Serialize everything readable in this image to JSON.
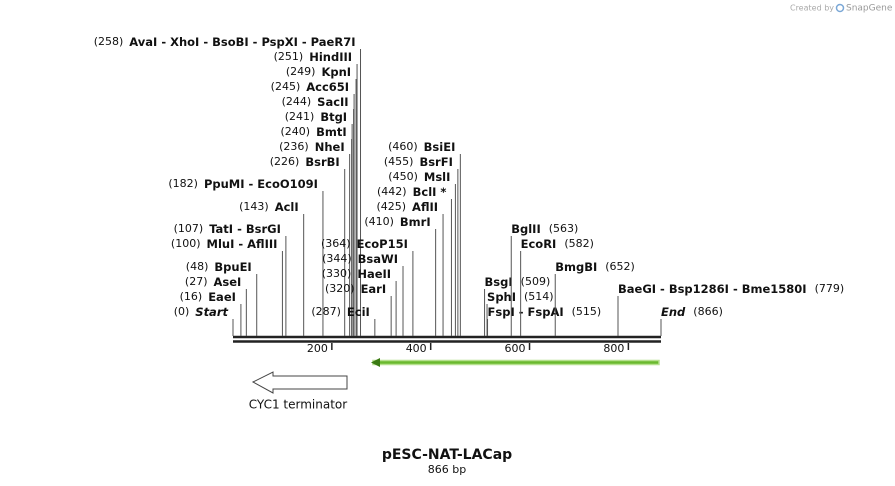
{
  "watermark": {
    "text": "Created by",
    "brand": "SnapGene"
  },
  "map": {
    "sites": [
      {
        "position": {
          "value": 258,
          "label": "(258)"
        },
        "names": "AvaI - XhoI - BsoBI - PspXI - PaeR7I"
      },
      {
        "position": {
          "value": 251,
          "label": "(251)"
        },
        "names": "HindIII"
      },
      {
        "position": {
          "value": 249,
          "label": "(249)"
        },
        "names": "KpnI"
      },
      {
        "position": {
          "value": 245,
          "label": "(245)"
        },
        "names": "Acc65I"
      },
      {
        "position": {
          "value": 244,
          "label": "(244)"
        },
        "names": "SacII"
      },
      {
        "position": {
          "value": 241,
          "label": "(241)"
        },
        "names": "BtgI"
      },
      {
        "position": {
          "value": 240,
          "label": "(240)"
        },
        "names": "BmtI"
      },
      {
        "position": {
          "value": 236,
          "label": "(236)"
        },
        "names": "NheI"
      },
      {
        "position": {
          "value": 226,
          "label": "(226)"
        },
        "names": "BsrBI"
      },
      {
        "position": {
          "value": 182,
          "label": "(182)"
        },
        "names": "PpuMI - EcoO109I"
      },
      {
        "position": {
          "value": 143,
          "label": "(143)"
        },
        "names": "AclI"
      },
      {
        "position": {
          "value": 107,
          "label": "(107)"
        },
        "names": "TatI - BsrGI"
      },
      {
        "position": {
          "value": 100,
          "label": "(100)"
        },
        "names": "MluI - AflIII"
      },
      {
        "position": {
          "value": 48,
          "label": "(48)"
        },
        "names": "BpuEI"
      },
      {
        "position": {
          "value": 27,
          "label": "(27)"
        },
        "names": "AseI"
      },
      {
        "position": {
          "value": 16,
          "label": "(16)"
        },
        "names": "EaeI"
      },
      {
        "position": {
          "value": 0,
          "label": "(0)"
        },
        "names": "Start"
      },
      {
        "position": {
          "value": 287,
          "label": "(287)"
        },
        "names": "EciI"
      },
      {
        "position": {
          "value": 320,
          "label": "(320)"
        },
        "names": "EarI"
      },
      {
        "position": {
          "value": 330,
          "label": "(330)"
        },
        "names": "HaeII"
      },
      {
        "position": {
          "value": 344,
          "label": "(344)"
        },
        "names": "BsaWI"
      },
      {
        "position": {
          "value": 364,
          "label": "(364)"
        },
        "names": "EcoP15I"
      },
      {
        "position": {
          "value": 410,
          "label": "(410)"
        },
        "names": "BmrI"
      },
      {
        "position": {
          "value": 425,
          "label": "(425)"
        },
        "names": "AflII"
      },
      {
        "position": {
          "value": 442,
          "label": "(442)"
        },
        "names": "BclI *"
      },
      {
        "position": {
          "value": 450,
          "label": "(450)"
        },
        "names": "MslI"
      },
      {
        "position": {
          "value": 455,
          "label": "(455)"
        },
        "names": "BsrFI"
      },
      {
        "position": {
          "value": 460,
          "label": "(460)"
        },
        "names": "BsiEI"
      },
      {
        "position": {
          "value": 509,
          "label": "(509)"
        },
        "names": "BsgI"
      },
      {
        "position": {
          "value": 514,
          "label": "(514)"
        },
        "names": "SphI"
      },
      {
        "position": {
          "value": 515,
          "label": "(515)"
        },
        "names": "FspI - FspAI"
      },
      {
        "position": {
          "value": 563,
          "label": "(563)"
        },
        "names": "BglII"
      },
      {
        "position": {
          "value": 582,
          "label": "(582)"
        },
        "names": "EcoRI"
      },
      {
        "position": {
          "value": 652,
          "label": "(652)"
        },
        "names": "BmgBI"
      },
      {
        "position": {
          "value": 779,
          "label": "(779)"
        },
        "names": "BaeGI - Bsp1286I - Bme1580I"
      },
      {
        "position": {
          "value": 866,
          "label": "(866)"
        },
        "names": "End"
      }
    ],
    "ticks": [
      200,
      400,
      600,
      800
    ]
  },
  "features": [
    {
      "name": "CYC1 terminator"
    }
  ],
  "title": "pESC-NAT-LACap",
  "size": "866 bp"
}
